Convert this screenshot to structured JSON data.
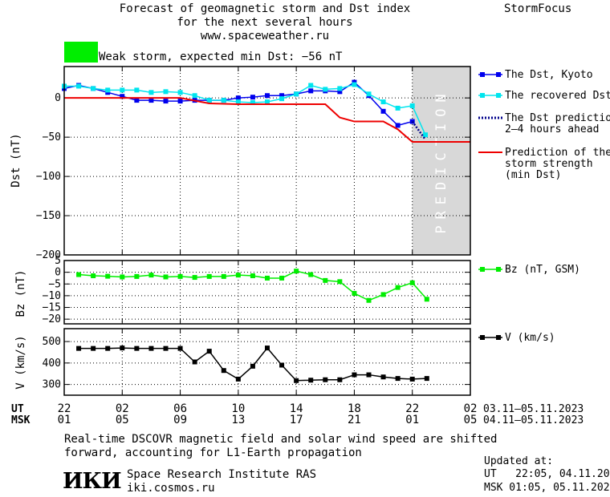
{
  "header": {
    "title_line1": "Forecast of geomagnetic storm and Dst index",
    "title_line2": "for the next several hours",
    "title_line3": "www.spaceweather.ru",
    "brand": "StormFocus",
    "status_text": "Weak storm, expected min Dst: −56 nT",
    "status_color": "#00ee00"
  },
  "footer": {
    "note_line1": "Real-time DSCOVR magnetic field and solar wind speed are shifted",
    "note_line2": "forward, accounting for L1-Earth propagation",
    "institute_logo": "ИКИ",
    "institute_name": "Space Research Institute RAS",
    "institute_url": "iki.cosmos.ru",
    "updated_label": "Updated at:",
    "updated_ut": "UT   22:05, 04.11.2023",
    "updated_msk": "MSK 01:05, 05.11.2023"
  },
  "time_axis": {
    "ut_label": "UT",
    "msk_label": "MSK",
    "ut_ticks": [
      "22",
      "02",
      "06",
      "10",
      "14",
      "18",
      "22",
      "02"
    ],
    "msk_ticks": [
      "01",
      "05",
      "09",
      "13",
      "17",
      "21",
      "01",
      "05"
    ],
    "ut_range_text": "03.11–05.11.2023",
    "msk_range_text": "04.11–05.11.2023",
    "hours": [
      22,
      26,
      30,
      34,
      38,
      42,
      46,
      50
    ],
    "xlim": [
      22,
      50
    ]
  },
  "chart_data": [
    {
      "type": "line",
      "ylabel": "Dst (nT)",
      "ylim": [
        -200,
        40
      ],
      "yticks": [
        0,
        -50,
        -100,
        -150,
        -200
      ],
      "prediction_label": "PREDICTION",
      "prediction_start_hour": 46,
      "legend": [
        {
          "label_lines": [
            "The Dst, Kyoto"
          ],
          "color": "#0000ee",
          "style": "solid-square"
        },
        {
          "label_lines": [
            "The recovered Dst"
          ],
          "color": "#00e5ee",
          "style": "solid-square"
        },
        {
          "label_lines": [
            "The Dst prediction",
            "2–4 hours ahead"
          ],
          "color": "#00008b",
          "style": "dotted"
        },
        {
          "label_lines": [
            "Prediction of the",
            "storm strength",
            "(min Dst)"
          ],
          "color": "#ee0000",
          "style": "solid"
        }
      ],
      "series": [
        {
          "name": "The Dst, Kyoto",
          "color": "#0000ee",
          "marker": "square",
          "x": [
            22,
            23,
            24,
            25,
            26,
            27,
            28,
            29,
            30,
            31,
            32,
            33,
            34,
            35,
            36,
            37,
            38,
            39,
            40,
            41,
            42,
            43,
            44,
            45,
            46
          ],
          "y": [
            12,
            16,
            12,
            7,
            2,
            -3,
            -3,
            -4,
            -4,
            -3,
            -3,
            -3,
            0,
            1,
            3,
            3,
            5,
            9,
            9,
            8,
            20,
            3,
            -17,
            -35,
            -30
          ]
        },
        {
          "name": "The recovered Dst",
          "color": "#00e5ee",
          "marker": "square",
          "x": [
            22,
            23,
            24,
            25,
            26,
            27,
            28,
            29,
            30,
            31,
            32,
            33,
            34,
            35,
            36,
            37,
            38,
            39,
            40,
            41,
            42,
            43,
            44,
            45,
            46,
            46.9
          ],
          "y": [
            15,
            15,
            12,
            10,
            10,
            10,
            7,
            8,
            7,
            3,
            -3,
            -3,
            -5,
            -6,
            -5,
            -1,
            5,
            16,
            11,
            12,
            17,
            5,
            -5,
            -13,
            -10,
            -47
          ]
        },
        {
          "name": "The Dst prediction 2–4 hours ahead",
          "color": "#00008b",
          "marker": "none",
          "x": [
            46,
            46.9
          ],
          "y": [
            -30,
            -53
          ]
        },
        {
          "name": "Prediction of the storm strength (min Dst)",
          "color": "#ee0000",
          "marker": "none",
          "x": [
            22,
            30,
            32,
            34,
            36,
            38,
            39,
            40,
            41,
            42,
            43,
            44,
            45,
            46,
            50
          ],
          "y": [
            0,
            0,
            -7,
            -8,
            -8,
            -8,
            -8,
            -8,
            -25,
            -30,
            -30,
            -30,
            -40,
            -56,
            -56
          ]
        }
      ]
    },
    {
      "type": "line",
      "ylabel": "Bz (nT)",
      "ylim": [
        -22,
        5
      ],
      "yticks": [
        5,
        0,
        -5,
        -10,
        -15,
        -20
      ],
      "legend": [
        {
          "label_lines": [
            "Bz (nT, GSM)"
          ],
          "color": "#00ee00",
          "style": "solid-square"
        }
      ],
      "series": [
        {
          "name": "Bz (nT, GSM)",
          "color": "#00ee00",
          "marker": "square",
          "x": [
            23,
            24,
            25,
            26,
            27,
            28,
            29,
            30,
            31,
            32,
            33,
            34,
            35,
            36,
            37,
            38,
            39,
            40,
            41,
            42,
            43,
            44,
            45,
            46,
            47
          ],
          "y": [
            -1,
            -1.5,
            -1.7,
            -2,
            -1.8,
            -1.2,
            -2,
            -1.8,
            -2.2,
            -1.8,
            -1.8,
            -1.2,
            -1.5,
            -2.5,
            -2.5,
            0.5,
            -1,
            -3.5,
            -4,
            -9,
            -12,
            -9.5,
            -6.5,
            -4.5,
            -11.5
          ]
        }
      ]
    },
    {
      "type": "line",
      "ylabel": "V (km/s)",
      "ylim": [
        250,
        560
      ],
      "yticks": [
        300,
        400,
        500
      ],
      "legend": [
        {
          "label_lines": [
            "V (km/s)"
          ],
          "color": "#000000",
          "style": "solid-square"
        }
      ],
      "series": [
        {
          "name": "V (km/s)",
          "color": "#000000",
          "marker": "square",
          "x": [
            23,
            24,
            25,
            26,
            27,
            28,
            29,
            30,
            31,
            32,
            33,
            34,
            35,
            36,
            37,
            38,
            39,
            40,
            41,
            42,
            43,
            44,
            45,
            46,
            47
          ],
          "y": [
            468,
            468,
            468,
            470,
            468,
            468,
            468,
            468,
            405,
            455,
            365,
            325,
            385,
            470,
            390,
            318,
            320,
            322,
            322,
            345,
            345,
            335,
            328,
            325,
            328
          ]
        }
      ]
    }
  ]
}
